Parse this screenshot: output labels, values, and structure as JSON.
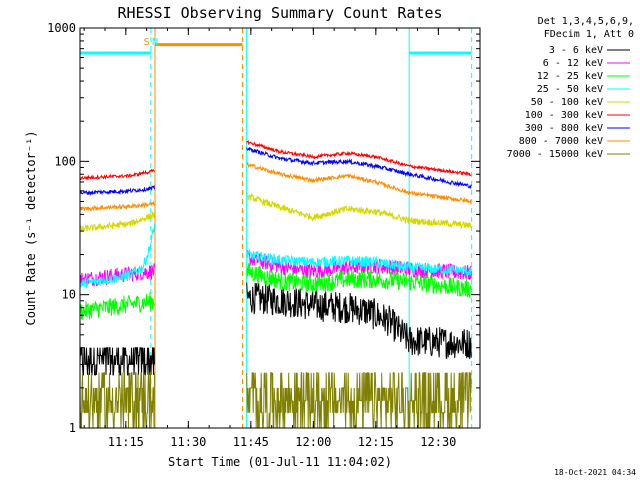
{
  "chart_data": {
    "type": "line",
    "title": "RHESSI Observing Summary Count Rates",
    "xlabel": "Start Time (01-Jul-11 11:04:02)",
    "ylabel": "Count Rate (s⁻¹ detector⁻¹)",
    "y_scale": "log",
    "ylim": [
      1,
      1000
    ],
    "xlim": [
      "11:04",
      "12:40"
    ],
    "x_ticks": [
      "11:15",
      "11:30",
      "11:45",
      "12:00",
      "12:15",
      "12:30"
    ],
    "y_ticks": [
      "1",
      "10",
      "100",
      "1000"
    ],
    "legend_position": "right",
    "legend_header": [
      "Det 1,3,4,5,6,9,",
      "FDecim 1, Att 0"
    ],
    "grid": false,
    "timestamp": "18-Oct-2021 04:34",
    "flags": [
      {
        "label": "S",
        "time": "11:20",
        "color": "#ff8c00"
      },
      {
        "label": "N",
        "time": "11:22",
        "color": "#00ffff"
      }
    ],
    "markers": [
      {
        "name": "night_start",
        "time": "11:21",
        "color": "#00ffff",
        "style": "dashed"
      },
      {
        "name": "saa_start",
        "time": "11:22",
        "color": "#ff8c00",
        "style": "solid"
      },
      {
        "name": "saa_end",
        "time": "11:43",
        "color": "#ff8c00",
        "style": "dashed"
      },
      {
        "name": "night_end",
        "time": "11:44",
        "color": "#00ffff",
        "style": "solid"
      },
      {
        "name": "night_start_2",
        "time": "12:23",
        "color": "#00ffff",
        "style": "solid"
      },
      {
        "name": "night_end_2",
        "time": "12:38",
        "color": "#00ffff",
        "style": "dashed"
      }
    ],
    "flag_levels": [
      {
        "color": "#00ffff",
        "y": 650,
        "segments": [
          [
            "11:04",
            "11:21"
          ],
          [
            "12:23",
            "12:38"
          ]
        ]
      },
      {
        "color": "#ff8c00",
        "y": 750,
        "segments": [
          [
            "11:22",
            "11:43"
          ]
        ]
      }
    ],
    "series": [
      {
        "name": "3 - 6 keV",
        "color": "#000000",
        "segments": [
          {
            "x": [
              "11:04",
              "11:22"
            ],
            "y": [
              3.5,
              3.6
            ],
            "noise": 0.18
          },
          {
            "x": [
              "11:44",
              "11:53",
              "12:00",
              "12:08",
              "12:13",
              "12:18",
              "12:23",
              "12:38"
            ],
            "y": [
              9.5,
              9,
              8.3,
              8,
              7.5,
              6.4,
              4.5,
              4.3
            ],
            "noise": 0.12
          }
        ]
      },
      {
        "name": "6 - 12 keV",
        "color": "#ff00ff",
        "segments": [
          {
            "x": [
              "11:04",
              "11:22"
            ],
            "y": [
              13,
              15
            ],
            "noise": 0.06
          },
          {
            "x": [
              "11:44",
              "11:53",
              "12:00",
              "12:08",
              "12:15",
              "12:23",
              "12:38"
            ],
            "y": [
              19,
              16,
              15,
              16,
              16.5,
              15.5,
              14.5
            ],
            "noise": 0.06
          }
        ]
      },
      {
        "name": "12 - 25 keV",
        "color": "#00ff00",
        "segments": [
          {
            "x": [
              "11:04",
              "11:22"
            ],
            "y": [
              7.5,
              9
            ],
            "noise": 0.07
          },
          {
            "x": [
              "11:44",
              "11:53",
              "12:00",
              "12:08",
              "12:15",
              "12:23",
              "12:38"
            ],
            "y": [
              15,
              12.5,
              12,
              13,
              13,
              12.5,
              11
            ],
            "noise": 0.07
          }
        ]
      },
      {
        "name": "25 - 50 keV",
        "color": "#00ffff",
        "segments": [
          {
            "x": [
              "11:04",
              "11:16",
              "11:19",
              "11:20",
              "11:21",
              "11:22"
            ],
            "y": [
              12,
              14,
              16,
              19,
              24,
              35
            ],
            "noise": 0.04
          },
          {
            "x": [
              "11:44",
              "11:53",
              "12:00",
              "12:08",
              "12:15",
              "12:23",
              "12:38"
            ],
            "y": [
              20,
              18,
              17.5,
              18,
              17.5,
              16,
              15
            ],
            "noise": 0.04
          }
        ]
      },
      {
        "name": "50 - 100 keV",
        "color": "#d6d600",
        "segments": [
          {
            "x": [
              "11:04",
              "11:16",
              "11:22"
            ],
            "y": [
              31,
              34,
              40
            ],
            "noise": 0.025
          },
          {
            "x": [
              "11:44",
              "11:52",
              "12:00",
              "12:08",
              "12:15",
              "12:23",
              "12:38"
            ],
            "y": [
              55,
              45,
              38,
              44,
              42,
              36,
              33
            ],
            "noise": 0.025
          }
        ]
      },
      {
        "name": "100 - 300 keV",
        "color": "#ff0000",
        "segments": [
          {
            "x": [
              "11:04",
              "11:16",
              "11:22"
            ],
            "y": [
              75,
              78,
              85
            ],
            "noise": 0.012
          },
          {
            "x": [
              "11:44",
              "11:52",
              "12:00",
              "12:08",
              "12:15",
              "12:23",
              "12:38"
            ],
            "y": [
              140,
              118,
              108,
              115,
              108,
              92,
              80
            ],
            "noise": 0.012
          }
        ]
      },
      {
        "name": "300 - 800 keV",
        "color": "#0000ff",
        "segments": [
          {
            "x": [
              "11:04",
              "11:16",
              "11:22"
            ],
            "y": [
              58,
              60,
              63
            ],
            "noise": 0.015
          },
          {
            "x": [
              "11:44",
              "11:52",
              "12:00",
              "12:08",
              "12:15",
              "12:23",
              "12:38"
            ],
            "y": [
              125,
              105,
              97,
              100,
              92,
              80,
              65
            ],
            "noise": 0.015
          }
        ]
      },
      {
        "name": "800 - 7000 keV",
        "color": "#ff8c00",
        "segments": [
          {
            "x": [
              "11:04",
              "11:16",
              "11:22"
            ],
            "y": [
              44,
              46,
              48
            ],
            "noise": 0.015
          },
          {
            "x": [
              "11:44",
              "11:52",
              "12:00",
              "12:08",
              "12:15",
              "12:23",
              "12:38"
            ],
            "y": [
              95,
              80,
              72,
              78,
              70,
              58,
              50
            ],
            "noise": 0.015
          }
        ]
      },
      {
        "name": "7000 - 15000 keV",
        "color": "#808000",
        "segments": [
          {
            "x": [
              "11:04",
              "11:22"
            ],
            "y": [
              1.6,
              1.6
            ],
            "noise": 0.25
          },
          {
            "x": [
              "11:44",
              "12:38"
            ],
            "y": [
              1.7,
              1.7
            ],
            "noise": 0.25
          }
        ]
      }
    ]
  }
}
